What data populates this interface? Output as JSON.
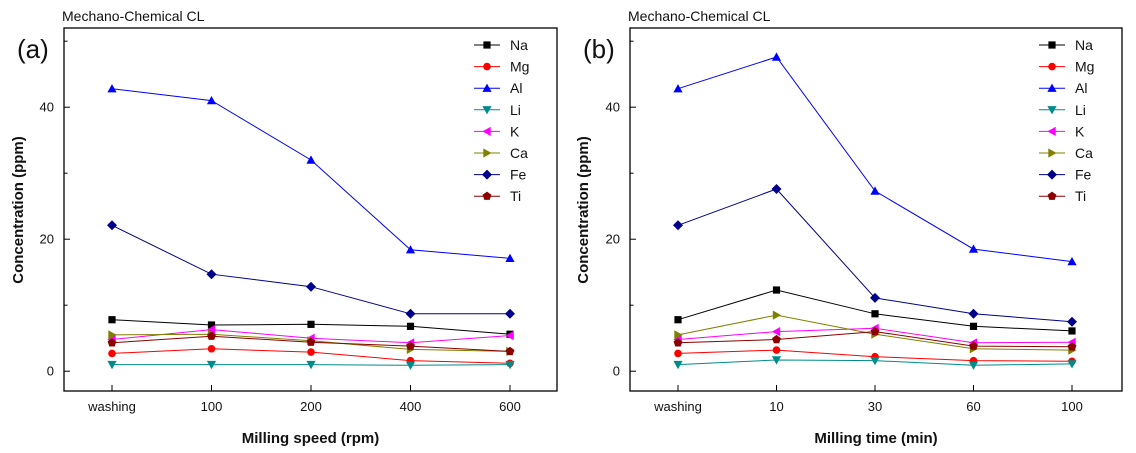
{
  "chart_data": [
    {
      "type": "line",
      "panel_label": "(a)",
      "title": "Mechano-Chemical CL",
      "xlabel": "Milling speed (rpm)",
      "ylabel": "Concentration (ppm)",
      "categories": [
        "washing",
        "100",
        "200",
        "400",
        "600"
      ],
      "ylim": [
        -3,
        52
      ],
      "yticks": [
        0,
        20,
        40
      ],
      "grid": false,
      "legend_position": "top-right",
      "series": [
        {
          "name": "Na",
          "color": "#000000",
          "marker": "square",
          "values": [
            7.8,
            7.0,
            7.1,
            6.8,
            5.6
          ]
        },
        {
          "name": "Mg",
          "color": "#ff0000",
          "marker": "circle",
          "values": [
            2.7,
            3.4,
            2.9,
            1.6,
            1.2
          ]
        },
        {
          "name": "Al",
          "color": "#0000ff",
          "marker": "triangle-up",
          "values": [
            42.8,
            41.0,
            32.0,
            18.4,
            17.1
          ]
        },
        {
          "name": "Li",
          "color": "#008b8b",
          "marker": "triangle-down",
          "values": [
            1.0,
            1.0,
            1.0,
            0.9,
            1.0
          ]
        },
        {
          "name": "K",
          "color": "#ff00ff",
          "marker": "triangle-left",
          "values": [
            4.8,
            6.3,
            5.0,
            4.3,
            5.4
          ]
        },
        {
          "name": "Ca",
          "color": "#808000",
          "marker": "triangle-right",
          "values": [
            5.5,
            5.6,
            4.6,
            3.3,
            3.0
          ]
        },
        {
          "name": "Fe",
          "color": "#00008b",
          "marker": "diamond",
          "values": [
            22.1,
            14.7,
            12.8,
            8.7,
            8.7
          ]
        },
        {
          "name": "Ti",
          "color": "#8b0000",
          "marker": "pentagon",
          "values": [
            4.3,
            5.3,
            4.4,
            3.8,
            3.0
          ]
        }
      ]
    },
    {
      "type": "line",
      "panel_label": "(b)",
      "title": "Mechano-Chemical CL",
      "xlabel": "Milling time (min)",
      "ylabel": "Concentration (ppm)",
      "categories": [
        "washing",
        "10",
        "30",
        "60",
        "100"
      ],
      "ylim": [
        -3,
        52
      ],
      "yticks": [
        0,
        20,
        40
      ],
      "grid": false,
      "legend_position": "top-right",
      "series": [
        {
          "name": "Na",
          "color": "#000000",
          "marker": "square",
          "values": [
            7.8,
            12.3,
            8.7,
            6.8,
            6.1
          ]
        },
        {
          "name": "Mg",
          "color": "#ff0000",
          "marker": "circle",
          "values": [
            2.7,
            3.2,
            2.2,
            1.6,
            1.5
          ]
        },
        {
          "name": "Al",
          "color": "#0000ff",
          "marker": "triangle-up",
          "values": [
            42.8,
            47.6,
            27.3,
            18.5,
            16.6
          ]
        },
        {
          "name": "Li",
          "color": "#008b8b",
          "marker": "triangle-down",
          "values": [
            1.0,
            1.7,
            1.6,
            0.9,
            1.1
          ]
        },
        {
          "name": "K",
          "color": "#ff00ff",
          "marker": "triangle-left",
          "values": [
            4.8,
            6.0,
            6.5,
            4.3,
            4.4
          ]
        },
        {
          "name": "Ca",
          "color": "#808000",
          "marker": "triangle-right",
          "values": [
            5.5,
            8.5,
            5.6,
            3.4,
            3.2
          ]
        },
        {
          "name": "Fe",
          "color": "#00008b",
          "marker": "diamond",
          "values": [
            22.1,
            27.6,
            11.1,
            8.7,
            7.5
          ]
        },
        {
          "name": "Ti",
          "color": "#8b0000",
          "marker": "pentagon",
          "values": [
            4.3,
            4.8,
            6.0,
            3.8,
            3.7
          ]
        }
      ]
    }
  ]
}
